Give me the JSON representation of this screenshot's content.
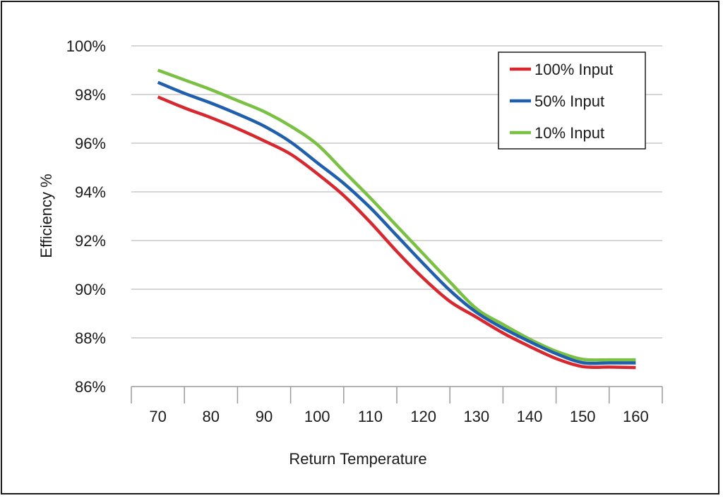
{
  "chart_data": {
    "type": "line",
    "xlabel": "Return Temperature",
    "ylabel": "Efficiency %",
    "x_ticks": [
      "70",
      "80",
      "90",
      "100",
      "110",
      "120",
      "130",
      "140",
      "150",
      "160"
    ],
    "y_ticks": [
      "86%",
      "88%",
      "90%",
      "92%",
      "94%",
      "96%",
      "98%",
      "100%"
    ],
    "xlim": [
      65,
      165
    ],
    "ylim": [
      86,
      100
    ],
    "grid": "horizontal",
    "legend_position": "top-right",
    "x": [
      70,
      75,
      80,
      85,
      90,
      95,
      100,
      105,
      110,
      115,
      120,
      125,
      130,
      135,
      140,
      145,
      150,
      155,
      160
    ],
    "series": [
      {
        "name": "100% Input",
        "color": "#d7282f",
        "values": [
          97.9,
          97.45,
          97.05,
          96.6,
          96.1,
          95.55,
          94.75,
          93.85,
          92.75,
          91.55,
          90.45,
          89.5,
          88.85,
          88.2,
          87.65,
          87.15,
          86.82,
          86.8,
          86.78
        ]
      },
      {
        "name": "50% Input",
        "color": "#1f5fad",
        "values": [
          98.5,
          98.05,
          97.65,
          97.2,
          96.7,
          96.05,
          95.2,
          94.35,
          93.35,
          92.2,
          91.05,
          89.95,
          89.05,
          88.4,
          87.85,
          87.35,
          86.98,
          86.97,
          86.97
        ]
      },
      {
        "name": "10% Input",
        "color": "#79c043",
        "values": [
          99.0,
          98.6,
          98.2,
          97.75,
          97.3,
          96.7,
          95.95,
          94.85,
          93.75,
          92.6,
          91.45,
          90.3,
          89.2,
          88.55,
          87.95,
          87.45,
          87.12,
          87.1,
          87.1
        ]
      }
    ]
  }
}
